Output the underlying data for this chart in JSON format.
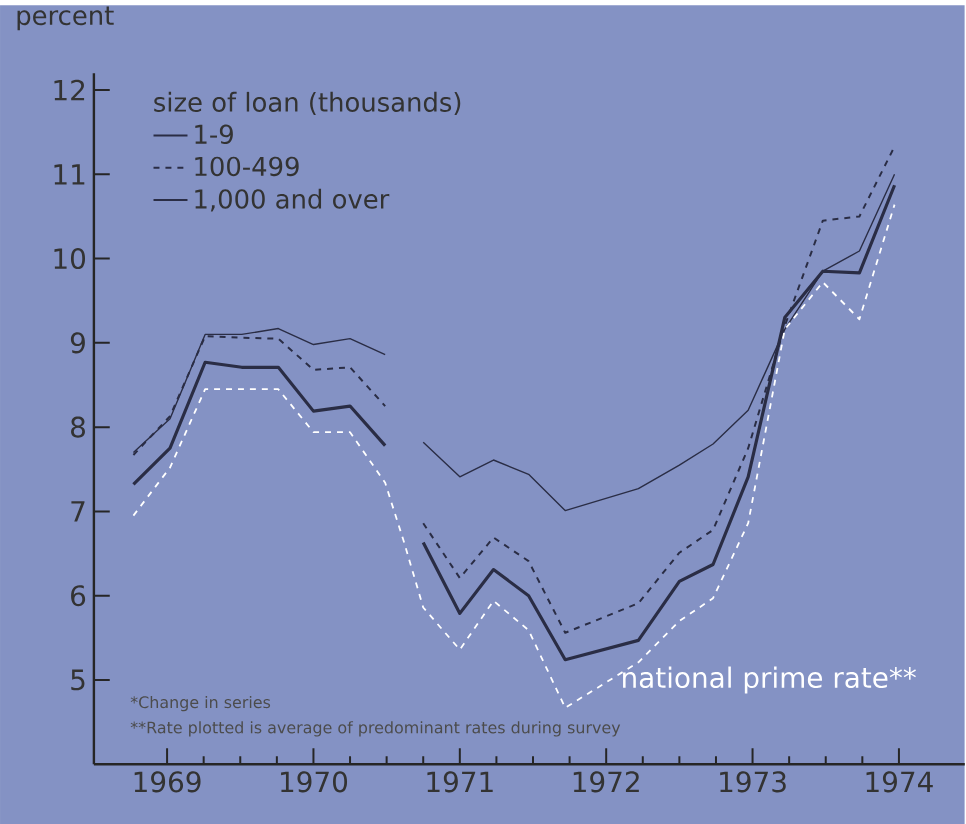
{
  "chart_data": {
    "type": "line",
    "ylabel": "percent",
    "legend_title": "size of loan (thousands)",
    "x": [
      1969.27,
      1969.52,
      1969.76,
      1970.01,
      1970.26,
      1970.5,
      1970.75,
      1970.99,
      1971.12,
      1971.25,
      1971.5,
      1971.73,
      1971.97,
      1972.22,
      1972.72,
      1973.0,
      1973.23,
      1973.47,
      1973.72,
      1973.98,
      1974.23,
      1974.47
    ],
    "series": [
      {
        "name": "1-9",
        "color": "#2a2d45",
        "line_style": "solid",
        "values": [
          7.7,
          8.1,
          9.1,
          9.1,
          9.17,
          8.98,
          9.05,
          8.86,
          null,
          7.82,
          7.41,
          7.61,
          7.44,
          7.01,
          7.27,
          7.55,
          7.8,
          8.2,
          9.16,
          9.85,
          10.09,
          11.0
        ]
      },
      {
        "name": "100-499",
        "color": "#2a2d45",
        "line_style": "dashed",
        "values": [
          7.67,
          8.13,
          9.08,
          9.06,
          9.05,
          8.68,
          8.71,
          8.25,
          null,
          6.86,
          6.21,
          6.69,
          6.41,
          5.56,
          5.91,
          6.51,
          6.78,
          7.75,
          9.2,
          10.45,
          10.5,
          11.33
        ]
      },
      {
        "name": "1,000 and over",
        "color": "#2a2d45",
        "line_style": "solid",
        "values": [
          7.32,
          7.75,
          8.77,
          8.71,
          8.71,
          8.19,
          8.25,
          7.78,
          null,
          6.63,
          5.79,
          6.31,
          6.0,
          5.24,
          5.47,
          6.17,
          6.37,
          7.41,
          9.3,
          9.85,
          9.83,
          10.87
        ]
      },
      {
        "name": "national prime rate**",
        "color": "#ffffff",
        "line_style": "dashed",
        "values": [
          6.95,
          7.52,
          8.45,
          8.45,
          8.45,
          7.94,
          7.94,
          7.34,
          6.63,
          5.86,
          5.36,
          5.94,
          5.59,
          4.67,
          5.21,
          5.7,
          5.97,
          6.86,
          9.16,
          9.72,
          9.28,
          10.64
        ]
      }
    ],
    "xlim": [
      1969,
      1974.95
    ],
    "ylim": [
      4.0,
      12.2
    ],
    "xticks": [
      {
        "value": 1969.5,
        "label": "1969"
      },
      {
        "value": 1970.5,
        "label": "1970"
      },
      {
        "value": 1971.5,
        "label": "1971"
      },
      {
        "value": 1972.5,
        "label": "1972"
      },
      {
        "value": 1973.5,
        "label": "1973"
      },
      {
        "value": 1974.5,
        "label": "1974"
      }
    ],
    "yticks": [
      5,
      6,
      7,
      8,
      9,
      10,
      11,
      12
    ],
    "annotations": [
      "*Change in series",
      "**Rate plotted is average of predominant rates during survey"
    ],
    "legend": "top left",
    "grid": false,
    "marker": "none"
  }
}
